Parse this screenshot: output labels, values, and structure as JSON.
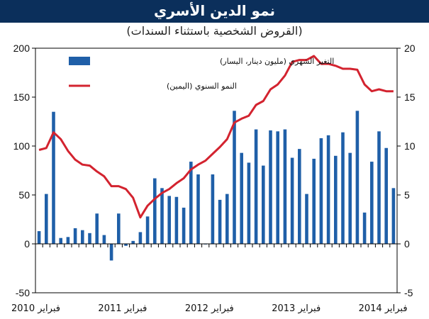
{
  "title": "نمو الدين الأسري",
  "subtitle": "(القروض الشخصية باستثناء السندات)",
  "colors": {
    "bar": "#1f5fa8",
    "line": "#d3232f",
    "title_bg": "#0b2f5b",
    "axis": "#000000"
  },
  "chart_data": {
    "type": "bar+line",
    "categories_start": "2010-02",
    "x_tick_labels": [
      "فبراير 2010",
      "فبراير 2011",
      "فبراير 2012",
      "فبراير 2013",
      "فبراير 2014"
    ],
    "y_left": {
      "min": -50,
      "max": 200,
      "ticks": [
        "200",
        "150",
        "100",
        "50",
        "0",
        "-50"
      ]
    },
    "y_right": {
      "min": -5,
      "max": 20,
      "ticks": [
        "20",
        "15",
        "10",
        "5",
        "0",
        "-5"
      ]
    },
    "series": [
      {
        "name": "التغير الشهري (مليون دينار، اليسار)",
        "type": "bar",
        "axis": "left",
        "values": [
          13,
          51,
          135,
          6,
          7,
          16,
          14,
          11,
          31,
          9,
          -17,
          31,
          -2,
          3,
          12,
          28,
          67,
          57,
          49,
          48,
          37,
          84,
          71,
          0,
          71,
          45,
          51,
          136,
          93,
          83,
          117,
          80,
          116,
          115,
          117,
          88,
          97,
          51,
          87,
          108,
          111,
          90,
          114,
          93,
          136,
          32,
          84,
          115,
          98,
          57
        ]
      },
      {
        "name": "النمو السنوي (اليمين)",
        "type": "line",
        "axis": "right",
        "values": [
          9.6,
          9.8,
          11.4,
          10.7,
          9.5,
          8.6,
          8.1,
          8.0,
          7.4,
          6.9,
          5.9,
          5.9,
          5.6,
          4.7,
          2.7,
          3.9,
          4.6,
          5.2,
          5.6,
          6.2,
          6.7,
          7.6,
          8.1,
          8.5,
          9.2,
          9.9,
          10.7,
          12.4,
          12.8,
          13.1,
          14.2,
          14.6,
          15.8,
          16.3,
          17.2,
          18.6,
          18.8,
          18.8,
          19.2,
          18.4,
          18.4,
          18.2,
          17.9,
          17.9,
          17.8,
          16.3,
          15.6,
          15.8,
          15.6,
          15.6
        ]
      }
    ],
    "grid": false,
    "legend_position": "top-left"
  }
}
